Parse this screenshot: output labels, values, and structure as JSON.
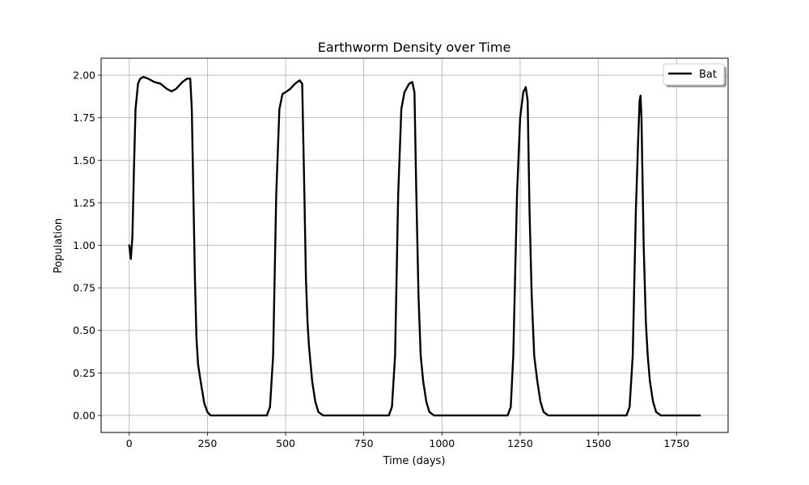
{
  "chart_data": {
    "type": "line",
    "title": "Earthworm Density over Time",
    "xlabel": "Time (days)",
    "ylabel": "Population",
    "xlim": [
      -90,
      1915
    ],
    "ylim": [
      -0.1,
      2.1
    ],
    "xticks": [
      0,
      250,
      500,
      750,
      1000,
      1250,
      1500,
      1750
    ],
    "xtick_labels": [
      "0",
      "250",
      "500",
      "750",
      "1000",
      "1250",
      "1500",
      "1750"
    ],
    "yticks": [
      0.0,
      0.25,
      0.5,
      0.75,
      1.0,
      1.25,
      1.5,
      1.75,
      2.0
    ],
    "ytick_labels": [
      "0.00",
      "0.25",
      "0.50",
      "0.75",
      "1.00",
      "1.25",
      "1.50",
      "1.75",
      "2.00"
    ],
    "grid": true,
    "legend_position": "top-right",
    "series": [
      {
        "name": "Bat",
        "color": "#000000",
        "points": [
          [
            0,
            1.0
          ],
          [
            5,
            0.92
          ],
          [
            10,
            1.05
          ],
          [
            15,
            1.45
          ],
          [
            20,
            1.8
          ],
          [
            28,
            1.95
          ],
          [
            35,
            1.98
          ],
          [
            45,
            1.99
          ],
          [
            60,
            1.98
          ],
          [
            80,
            1.96
          ],
          [
            100,
            1.95
          ],
          [
            120,
            1.92
          ],
          [
            135,
            1.905
          ],
          [
            150,
            1.92
          ],
          [
            170,
            1.96
          ],
          [
            185,
            1.98
          ],
          [
            195,
            1.98
          ],
          [
            200,
            1.8
          ],
          [
            205,
            1.3
          ],
          [
            210,
            0.8
          ],
          [
            215,
            0.45
          ],
          [
            220,
            0.3
          ],
          [
            230,
            0.18
          ],
          [
            240,
            0.07
          ],
          [
            250,
            0.02
          ],
          [
            260,
            0.0
          ],
          [
            300,
            0.0
          ],
          [
            400,
            0.0
          ],
          [
            440,
            0.0
          ],
          [
            450,
            0.05
          ],
          [
            460,
            0.35
          ],
          [
            470,
            1.3
          ],
          [
            480,
            1.8
          ],
          [
            490,
            1.89
          ],
          [
            500,
            1.9
          ],
          [
            515,
            1.92
          ],
          [
            530,
            1.95
          ],
          [
            545,
            1.97
          ],
          [
            553,
            1.95
          ],
          [
            560,
            1.3
          ],
          [
            565,
            0.8
          ],
          [
            570,
            0.55
          ],
          [
            575,
            0.4
          ],
          [
            585,
            0.2
          ],
          [
            595,
            0.08
          ],
          [
            605,
            0.02
          ],
          [
            620,
            0.0
          ],
          [
            700,
            0.0
          ],
          [
            800,
            0.0
          ],
          [
            830,
            0.0
          ],
          [
            840,
            0.05
          ],
          [
            850,
            0.35
          ],
          [
            860,
            1.3
          ],
          [
            870,
            1.8
          ],
          [
            880,
            1.9
          ],
          [
            895,
            1.95
          ],
          [
            905,
            1.96
          ],
          [
            912,
            1.9
          ],
          [
            918,
            1.3
          ],
          [
            925,
            0.7
          ],
          [
            932,
            0.35
          ],
          [
            940,
            0.2
          ],
          [
            950,
            0.08
          ],
          [
            960,
            0.02
          ],
          [
            975,
            0.0
          ],
          [
            1100,
            0.0
          ],
          [
            1210,
            0.0
          ],
          [
            1220,
            0.05
          ],
          [
            1228,
            0.35
          ],
          [
            1240,
            1.3
          ],
          [
            1250,
            1.75
          ],
          [
            1260,
            1.9
          ],
          [
            1268,
            1.93
          ],
          [
            1274,
            1.85
          ],
          [
            1280,
            1.2
          ],
          [
            1287,
            0.7
          ],
          [
            1295,
            0.35
          ],
          [
            1305,
            0.2
          ],
          [
            1315,
            0.08
          ],
          [
            1325,
            0.02
          ],
          [
            1340,
            0.0
          ],
          [
            1450,
            0.0
          ],
          [
            1590,
            0.0
          ],
          [
            1600,
            0.05
          ],
          [
            1610,
            0.35
          ],
          [
            1620,
            1.2
          ],
          [
            1627,
            1.6
          ],
          [
            1632,
            1.85
          ],
          [
            1635,
            1.88
          ],
          [
            1638,
            1.75
          ],
          [
            1645,
            1.0
          ],
          [
            1652,
            0.55
          ],
          [
            1658,
            0.35
          ],
          [
            1665,
            0.2
          ],
          [
            1675,
            0.08
          ],
          [
            1685,
            0.02
          ],
          [
            1700,
            0.0
          ],
          [
            1825,
            0.0
          ]
        ]
      }
    ]
  }
}
